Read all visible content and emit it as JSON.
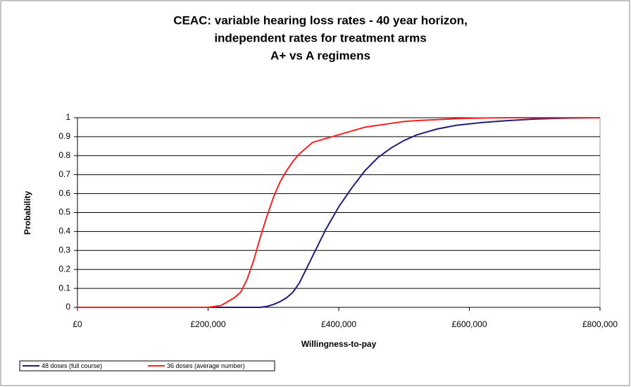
{
  "chart_data": {
    "type": "line",
    "title": [
      "CEAC: variable hearing loss rates - 40 year horizon,",
      "independent rates for treatment arms",
      "A+ vs A regimens"
    ],
    "xlabel": "Willingness-to-pay",
    "ylabel": "Probability",
    "x": [
      0,
      200000,
      220000,
      240000,
      250000,
      260000,
      270000,
      280000,
      290000,
      300000,
      310000,
      320000,
      330000,
      340000,
      350000,
      360000,
      370000,
      380000,
      390000,
      400000,
      420000,
      440000,
      460000,
      480000,
      500000,
      520000,
      550000,
      580000,
      620000,
      660000,
      700000,
      750000,
      800000
    ],
    "series": [
      {
        "name": "48 doses (full course)",
        "color": "#1f1f7a",
        "values": [
          0,
          0,
          0,
          0,
          0,
          0,
          0,
          0,
          0.005,
          0.015,
          0.03,
          0.05,
          0.08,
          0.13,
          0.2,
          0.27,
          0.34,
          0.41,
          0.47,
          0.53,
          0.63,
          0.72,
          0.79,
          0.84,
          0.88,
          0.91,
          0.94,
          0.96,
          0.975,
          0.985,
          0.993,
          0.998,
          1
        ]
      },
      {
        "name": "36 doses (average number)",
        "color": "#ff2020",
        "values": [
          0,
          0,
          0.01,
          0.05,
          0.08,
          0.15,
          0.25,
          0.37,
          0.48,
          0.58,
          0.66,
          0.72,
          0.77,
          0.81,
          0.84,
          0.87,
          0.88,
          0.89,
          0.9,
          0.91,
          0.93,
          0.95,
          0.96,
          0.97,
          0.98,
          0.985,
          0.99,
          0.995,
          0.998,
          1,
          1,
          1,
          1
        ]
      }
    ],
    "xlim": [
      0,
      800000
    ],
    "xticks": [
      {
        "value": 0,
        "label": "£0"
      },
      {
        "value": 200000,
        "label": "£200,000"
      },
      {
        "value": 400000,
        "label": "£400,000"
      },
      {
        "value": 600000,
        "label": "£600,000"
      },
      {
        "value": 800000,
        "label": "£800,000"
      }
    ],
    "ylim": [
      0,
      1
    ],
    "yticks": [
      0,
      0.1,
      0.2,
      0.3,
      0.4,
      0.5,
      0.6,
      0.7,
      0.8,
      0.9,
      1
    ],
    "grid": true,
    "legend": "bottom-left"
  }
}
